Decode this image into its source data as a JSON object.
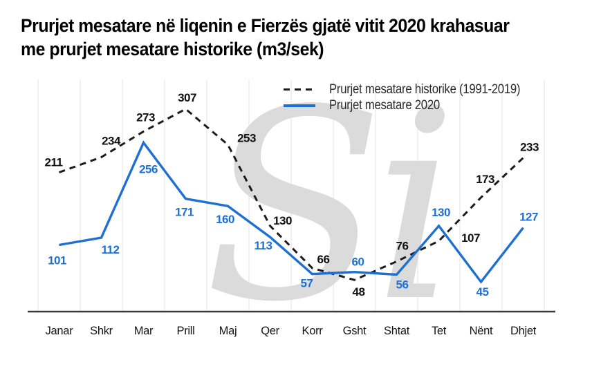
{
  "title": {
    "line1": "Prurjet mesatare në liqenin e Fierzës gjatë vitit 2020 krahasuar",
    "line2": "me prurjet mesatare historike (m3/sek)"
  },
  "watermark": "Si",
  "legend": [
    {
      "label": "Prurjet mesatare historike (1991-2019)",
      "style": "dashed",
      "color": "#1c1c1c"
    },
    {
      "label": "Prurjet mesatare 2020",
      "style": "solid",
      "color": "#1d70d2"
    }
  ],
  "colors": {
    "blue": "#1d70d2",
    "black": "#1c1c1c",
    "grid": "#e3e3e3",
    "axis": "#3b3b3b",
    "watermark": "#dbdbdb",
    "background": "#ffffff"
  },
  "chart_data": {
    "type": "line",
    "title": "Prurjet mesatare në liqenin e Fierzës gjatë vitit 2020 krahasuar me prurjet mesatare historike (m3/sek)",
    "categories": [
      "Janar",
      "Shkr",
      "Mar",
      "Prill",
      "Maj",
      "Qer",
      "Korr",
      "Gsht",
      "Shtat",
      "Tet",
      "Nënt",
      "Dhjet"
    ],
    "series": [
      {
        "name": "Prurjet mesatare historike (1991-2019)",
        "style": "dashed",
        "color": "#1c1c1c",
        "values": [
          211,
          234,
          273,
          307,
          253,
          130,
          66,
          48,
          76,
          107,
          173,
          233
        ]
      },
      {
        "name": "Prurjet mesatare 2020",
        "style": "solid",
        "color": "#1d70d2",
        "values": [
          101,
          112,
          256,
          171,
          160,
          113,
          57,
          60,
          56,
          130,
          45,
          127
        ]
      }
    ],
    "xlabel": "",
    "ylabel": "",
    "ylim": [
      0,
      350
    ],
    "grid": "vertical-only",
    "legend_position": "top-right",
    "data_labels": true
  }
}
